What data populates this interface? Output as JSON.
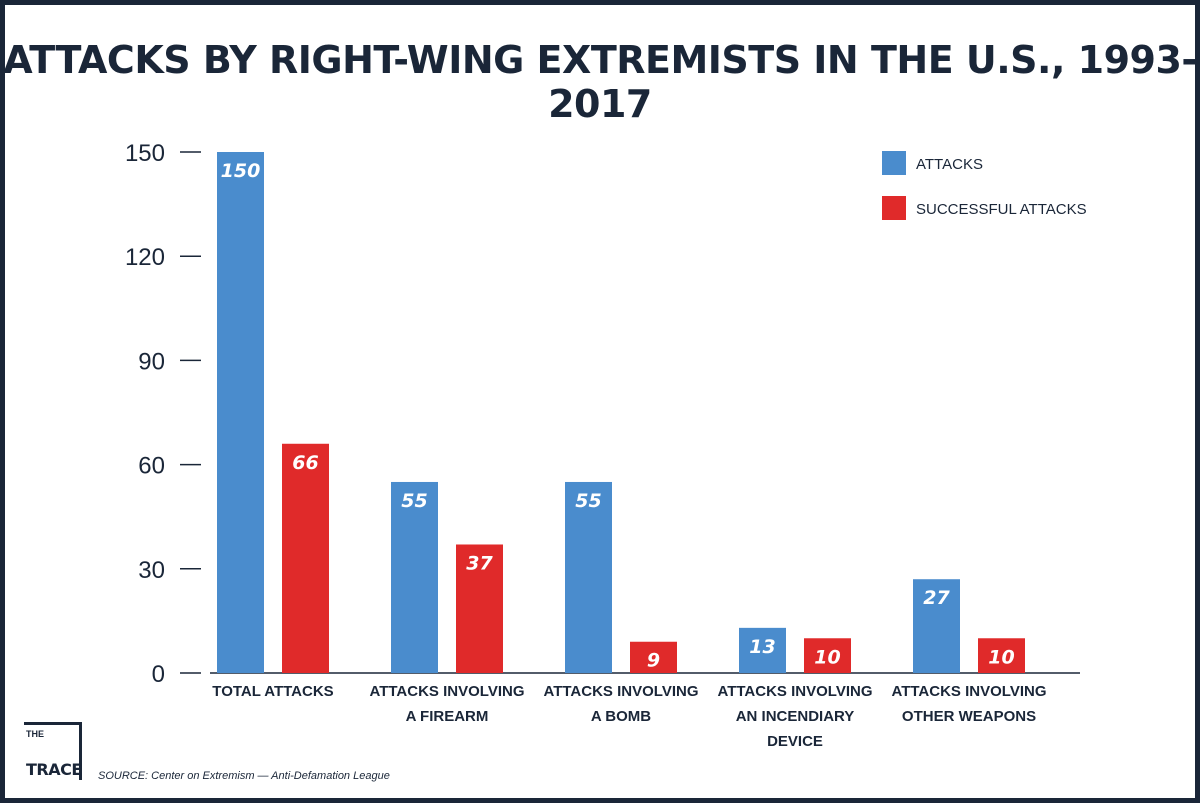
{
  "title": "ATTACKS BY RIGHT-WING EXTREMISTS IN THE U.S., 1993-2017",
  "source": "SOURCE: Center on Extremism — Anti-Defamation League",
  "logo": {
    "top": "THE",
    "bottom": "TRACE",
    "icon": "the-trace-logo"
  },
  "colors": {
    "attacks": "#4a8ccd",
    "successful": "#e02a2a",
    "text": "#1a2638"
  },
  "chart_data": {
    "type": "bar",
    "title": "ATTACKS BY RIGHT-WING EXTREMISTS IN THE U.S., 1993-2017",
    "xlabel": "",
    "ylabel": "",
    "ylim": [
      0,
      150
    ],
    "yticks": [
      0,
      30,
      60,
      90,
      120,
      150
    ],
    "grid": false,
    "legend_position": "top-right",
    "categories": [
      [
        "TOTAL ATTACKS"
      ],
      [
        "ATTACKS INVOLVING",
        "A FIREARM"
      ],
      [
        "ATTACKS INVOLVING",
        "A BOMB"
      ],
      [
        "ATTACKS INVOLVING",
        "AN INCENDIARY",
        "DEVICE"
      ],
      [
        "ATTACKS INVOLVING",
        "OTHER WEAPONS"
      ]
    ],
    "series": [
      {
        "name": "ATTACKS",
        "color": "#4a8ccd",
        "values": [
          150,
          55,
          55,
          13,
          27
        ]
      },
      {
        "name": "SUCCESSFUL ATTACKS",
        "color": "#e02a2a",
        "values": [
          66,
          37,
          9,
          10,
          10
        ]
      }
    ]
  }
}
